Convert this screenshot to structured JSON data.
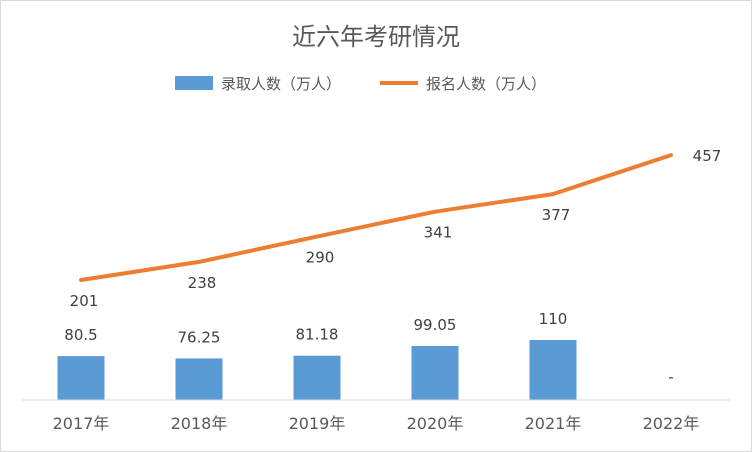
{
  "chart_data": {
    "type": "bar+line",
    "title": "近六年考研情况",
    "categories": [
      "2017年",
      "2018年",
      "2019年",
      "2020年",
      "2021年",
      "2022年"
    ],
    "series": [
      {
        "name": "录取人数（万人）",
        "type": "bar",
        "color": "#5B9BD5",
        "values": [
          80.5,
          76.25,
          81.18,
          99.05,
          110,
          null
        ],
        "labels": [
          "80.5",
          "76.25",
          "81.18",
          "99.05",
          "110",
          "-"
        ]
      },
      {
        "name": "报名人数（万人）",
        "type": "line",
        "color": "#ED7D31",
        "values": [
          201,
          238,
          290,
          341,
          377,
          457
        ],
        "labels": [
          "201",
          "238",
          "290",
          "341",
          "377",
          "457"
        ]
      }
    ],
    "legend_position": "top",
    "grid": false
  }
}
